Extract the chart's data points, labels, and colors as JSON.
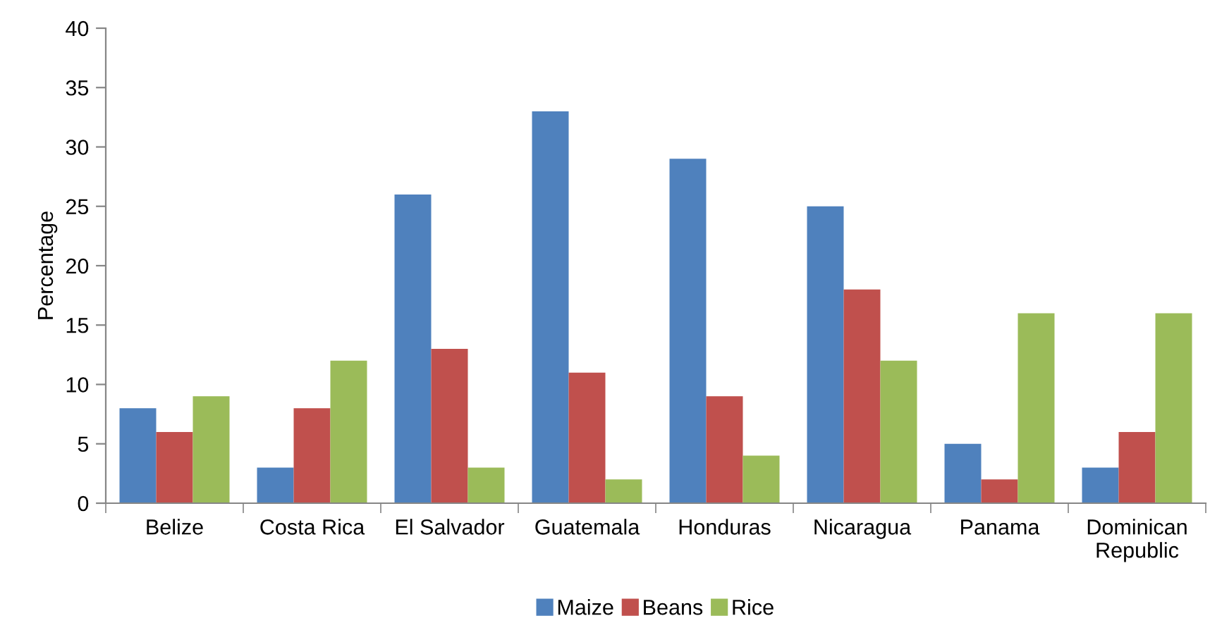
{
  "chart_data": {
    "type": "bar",
    "ylabel": "Percentage",
    "categories": [
      "Belize",
      "Costa Rica",
      "El Salvador",
      "Guatemala",
      "Honduras",
      "Nicaragua",
      "Panama",
      "Dominican\nRepublic"
    ],
    "series": [
      {
        "name": "Maize",
        "color": "#4f81bd",
        "values": [
          8,
          3,
          26,
          33,
          29,
          25,
          5,
          3
        ]
      },
      {
        "name": "Beans",
        "color": "#c0504d",
        "values": [
          6,
          8,
          13,
          11,
          9,
          18,
          2,
          6
        ]
      },
      {
        "name": "Rice",
        "color": "#9bbb59",
        "values": [
          9,
          12,
          3,
          2,
          4,
          12,
          16,
          16
        ]
      }
    ],
    "ylim": [
      0,
      40
    ],
    "yticks": [
      0,
      5,
      10,
      15,
      20,
      25,
      30,
      35,
      40
    ],
    "grid": false,
    "legend": "bottom"
  }
}
